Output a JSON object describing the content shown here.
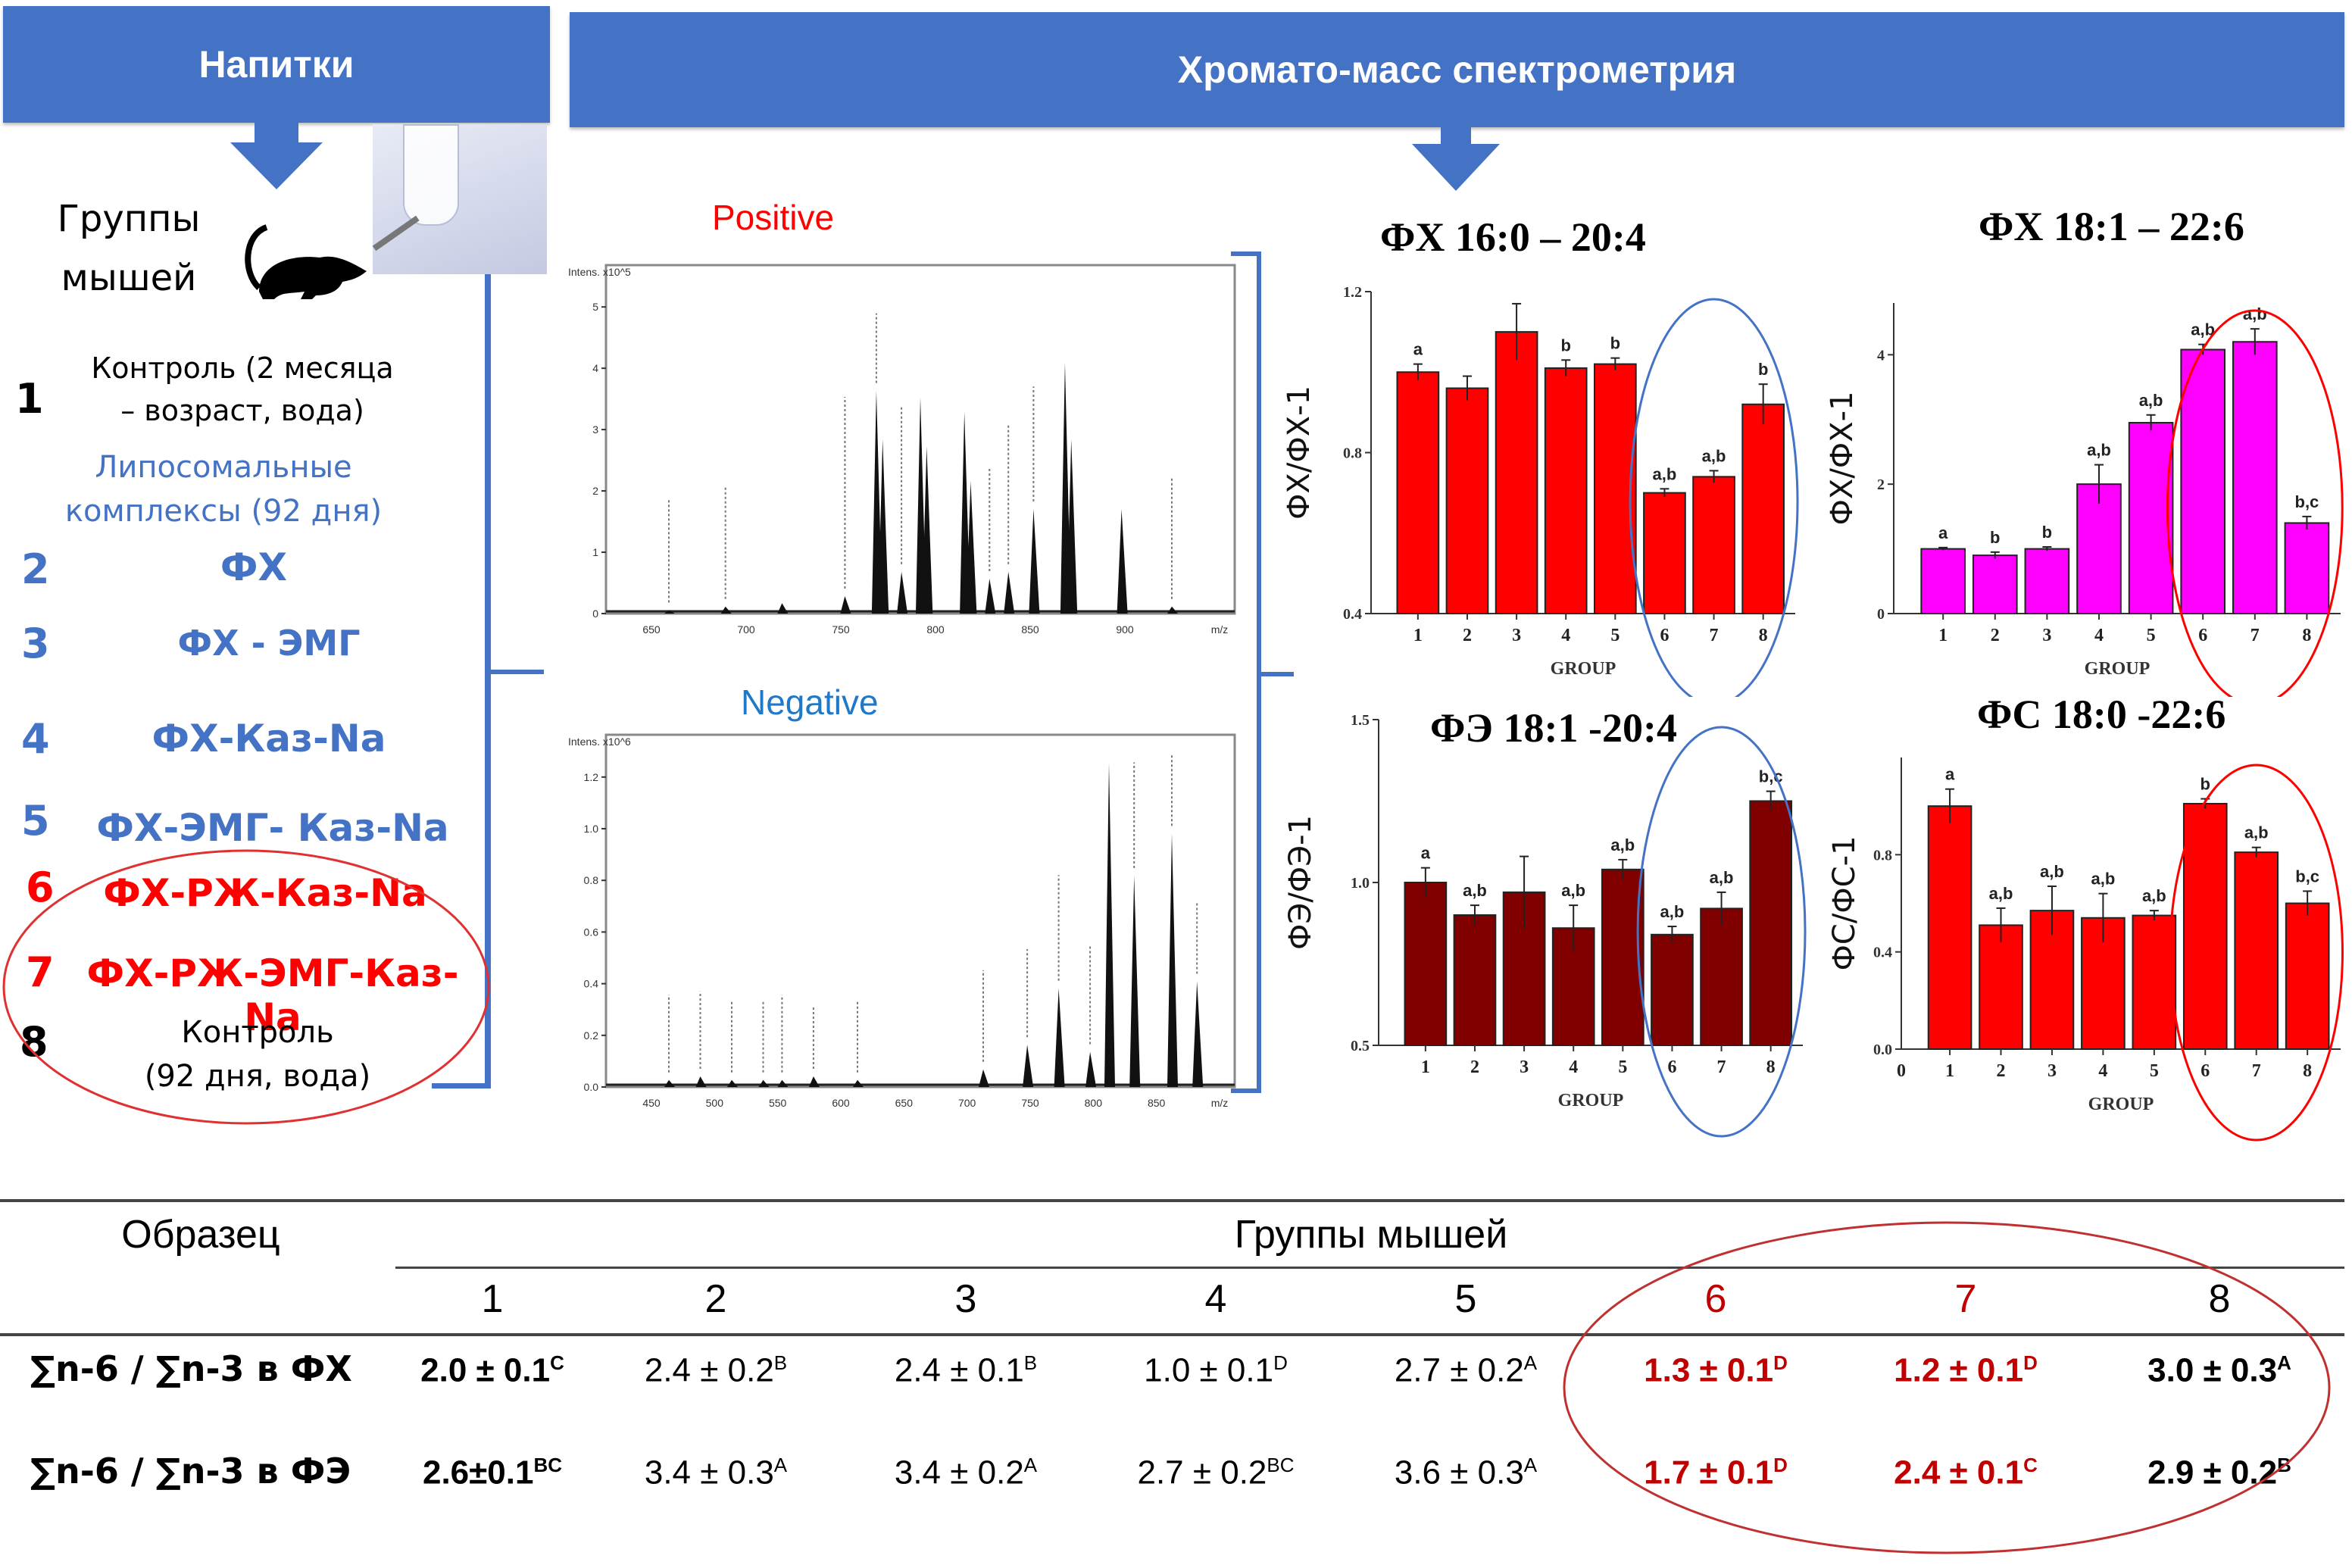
{
  "banners": {
    "drinks": "Напитки",
    "ms": "Хромато-масс спектрометрия"
  },
  "mice_label": [
    "Группы",
    "мышей"
  ],
  "groups": [
    {
      "num": "1",
      "label_lines": [
        "Контроль (2 месяца",
        "– возраст, вода)"
      ],
      "color": "#000000"
    },
    {
      "num": "",
      "label_lines": [
        "Липосомальные",
        "комплексы (92 дня)"
      ],
      "color": "#4472c4"
    },
    {
      "num": "2",
      "label_lines": [
        "ФХ"
      ],
      "color": "#4472c4"
    },
    {
      "num": "3",
      "label_lines": [
        "ФХ - ЭМГ"
      ],
      "color": "#4472c4"
    },
    {
      "num": "4",
      "label_lines": [
        "ФХ-Каз-Na"
      ],
      "color": "#4472c4"
    },
    {
      "num": "5",
      "label_lines": [
        "ФХ-ЭМГ- Каз-Na"
      ],
      "color": "#4472c4"
    },
    {
      "num": "6",
      "label_lines": [
        "ФХ-РЖ-Каз-Na"
      ],
      "color": "#ff0000"
    },
    {
      "num": "7",
      "label_lines": [
        "ФХ-РЖ-ЭМГ-Каз-Na"
      ],
      "color": "#ff0000"
    },
    {
      "num": "8",
      "label_lines": [
        "Контроль",
        "(92 дня, вода)"
      ],
      "color": "#000000"
    }
  ],
  "spectra": {
    "positive": {
      "title": "Positive",
      "y_label": "Intens. x10^5",
      "y_ticks": [
        "0",
        "1",
        "2",
        "3",
        "4",
        "5"
      ],
      "x_ticks": [
        "650",
        "700",
        "750",
        "800",
        "850",
        "900",
        "m/z"
      ]
    },
    "negative": {
      "title": "Negative",
      "y_label": "Intens. x10^6",
      "y_ticks": [
        "0.0",
        "0.2",
        "0.4",
        "0.6",
        "0.8",
        "1.0",
        "1.2"
      ],
      "x_ticks": [
        "450",
        "500",
        "550",
        "600",
        "650",
        "700",
        "750",
        "800",
        "850",
        "m/z"
      ]
    }
  },
  "chart_data": [
    {
      "type": "bar",
      "title": "ФХ 16:0 – 20:4",
      "xlabel": "GROUP",
      "ylabel": "ФХ/ФХ-1",
      "categories": [
        "1",
        "2",
        "3",
        "4",
        "5",
        "6",
        "7",
        "8"
      ],
      "values": [
        1.0,
        0.96,
        1.1,
        1.01,
        1.02,
        0.7,
        0.74,
        0.92
      ],
      "errors": [
        0.02,
        0.03,
        0.07,
        0.02,
        0.015,
        0.01,
        0.015,
        0.05
      ],
      "annotations": [
        "a",
        "",
        "",
        "b",
        "b",
        "a,b",
        "a,b",
        "b"
      ],
      "ylim": [
        0.4,
        1.2
      ],
      "y_ticks": [
        "0.4",
        "0.8",
        "1.2"
      ],
      "bar_color": "#ff0000",
      "highlight": {
        "groups": [
          "6",
          "7",
          "8"
        ],
        "color": "#4472c4"
      }
    },
    {
      "type": "bar",
      "title": "ФХ 18:1 – 22:6",
      "xlabel": "GROUP",
      "ylabel": "ФХ/ФХ-1",
      "categories": [
        "1",
        "2",
        "3",
        "4",
        "5",
        "6",
        "7",
        "8"
      ],
      "values": [
        1.0,
        0.9,
        1.0,
        2.0,
        2.95,
        4.08,
        4.2,
        1.4
      ],
      "errors": [
        0.02,
        0.05,
        0.03,
        0.3,
        0.12,
        0.08,
        0.2,
        0.1
      ],
      "annotations": [
        "a",
        "b",
        "b",
        "a,b",
        "a,b",
        "a,b",
        "a,b",
        "b,c"
      ],
      "ylim": [
        0,
        4.8
      ],
      "y_ticks": [
        "0",
        "2",
        "4"
      ],
      "bar_color": "#ff00ff",
      "highlight": {
        "groups": [
          "6",
          "7",
          "8"
        ],
        "color": "#ff0000"
      }
    },
    {
      "type": "bar",
      "title": "ФЭ 18:1 -20:4",
      "xlabel": "GROUP",
      "ylabel": "ФЭ/ФЭ-1",
      "categories": [
        "1",
        "2",
        "3",
        "4",
        "5",
        "6",
        "7",
        "8"
      ],
      "values": [
        1.0,
        0.9,
        0.97,
        0.86,
        1.04,
        0.84,
        0.92,
        1.25
      ],
      "errors": [
        0.045,
        0.03,
        0.11,
        0.07,
        0.03,
        0.025,
        0.05,
        0.03
      ],
      "annotations": [
        "a",
        "a,b",
        "",
        "a,b",
        "a,b",
        "a,b",
        "a,b",
        "b,c"
      ],
      "ylim": [
        0.5,
        1.5
      ],
      "y_ticks": [
        "0.5",
        "1.0",
        "1.5"
      ],
      "bar_color": "#800000",
      "highlight": {
        "groups": [
          "6",
          "7",
          "8"
        ],
        "color": "#4472c4"
      }
    },
    {
      "type": "bar",
      "title": "ФС 18:0 -22:6",
      "xlabel": "GROUP",
      "ylabel": "ФС/ФС-1",
      "categories": [
        "1",
        "2",
        "3",
        "4",
        "5",
        "6",
        "7",
        "8"
      ],
      "values": [
        1.0,
        0.51,
        0.57,
        0.54,
        0.55,
        1.01,
        0.81,
        0.6
      ],
      "errors": [
        0.07,
        0.07,
        0.1,
        0.1,
        0.02,
        0.02,
        0.02,
        0.05
      ],
      "annotations": [
        "a",
        "a,b",
        "a,b",
        "a,b",
        "a,b",
        "b",
        "a,b",
        "b,c"
      ],
      "ylim": [
        0,
        1.2
      ],
      "y_ticks": [
        "0.0",
        "0.4",
        "0.8"
      ],
      "x_extra_tick": "0",
      "bar_color": "#ff0000",
      "highlight": {
        "groups": [
          "6",
          "7",
          "8"
        ],
        "color": "#ff0000"
      }
    }
  ],
  "table": {
    "sample_header": "Образец",
    "groups_header": "Группы мышей",
    "group_numbers": [
      "1",
      "2",
      "3",
      "4",
      "5",
      "6",
      "7",
      "8"
    ],
    "rows": [
      {
        "label": "∑n-6 / ∑n-3 в ФХ",
        "cells": [
          {
            "value": "2.0 ± 0.1",
            "sup": "C",
            "bold": true,
            "color": "#000000"
          },
          {
            "value": "2.4 ± 0.2",
            "sup": "B",
            "bold": false,
            "color": "#000000"
          },
          {
            "value": "2.4 ± 0.1",
            "sup": "B",
            "bold": false,
            "color": "#000000"
          },
          {
            "value": "1.0 ± 0.1",
            "sup": "D",
            "bold": false,
            "color": "#000000"
          },
          {
            "value": "2.7 ± 0.2",
            "sup": "A",
            "bold": false,
            "color": "#000000"
          },
          {
            "value": "1.3 ± 0.1",
            "sup": "D",
            "bold": true,
            "color": "#c00000"
          },
          {
            "value": "1.2 ± 0.1",
            "sup": "D",
            "bold": true,
            "color": "#c00000"
          },
          {
            "value": "3.0 ± 0.3",
            "sup": "A",
            "bold": true,
            "color": "#000000"
          }
        ]
      },
      {
        "label": "∑n-6 / ∑n-3 в ФЭ",
        "cells": [
          {
            "value": "2.6±0.1",
            "sup": "BC",
            "bold": true,
            "color": "#000000"
          },
          {
            "value": "3.4 ± 0.3",
            "sup": "A",
            "bold": false,
            "color": "#000000"
          },
          {
            "value": "3.4 ± 0.2",
            "sup": "A",
            "bold": false,
            "color": "#000000"
          },
          {
            "value": "2.7 ± 0.2",
            "sup": "BC",
            "bold": false,
            "color": "#000000"
          },
          {
            "value": "3.6 ± 0.3",
            "sup": "A",
            "bold": false,
            "color": "#000000"
          },
          {
            "value": "1.7 ± 0.1",
            "sup": "D",
            "bold": true,
            "color": "#c00000"
          },
          {
            "value": "2.4 ± 0.1",
            "sup": "C",
            "bold": true,
            "color": "#c00000"
          },
          {
            "value": "2.9 ± 0.2",
            "sup": "B",
            "bold": true,
            "color": "#000000"
          }
        ]
      }
    ]
  },
  "colors": {
    "banner": "#4472c4",
    "bracket": "#4472c4",
    "highlight_red": "#ff0000",
    "highlight_blue": "#4472c4"
  }
}
